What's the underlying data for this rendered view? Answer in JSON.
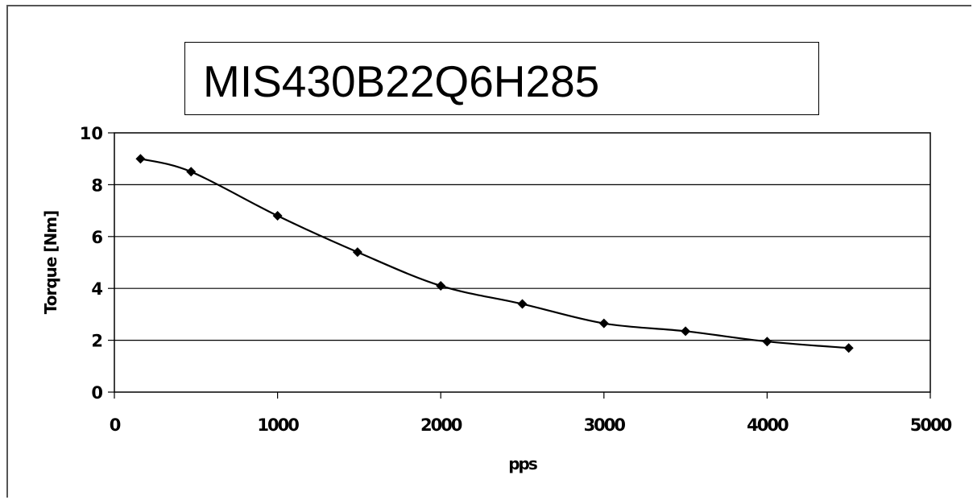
{
  "chart_data": {
    "type": "line",
    "title": "MIS430B22Q6H285",
    "xlabel": "pps",
    "ylabel": "Torque [Nm]",
    "xlim": [
      0,
      5000
    ],
    "ylim": [
      0,
      10
    ],
    "x_ticks": [
      "0",
      "1000",
      "2000",
      "3000",
      "4000",
      "5000"
    ],
    "y_ticks": [
      "0",
      "2",
      "4",
      "6",
      "8",
      "10"
    ],
    "grid": "horizontal",
    "series": [
      {
        "x": [
          160,
          470,
          1000,
          1490,
          2000,
          2500,
          3000,
          3500,
          4000,
          4500
        ],
        "y": [
          9.0,
          8.5,
          6.8,
          5.4,
          4.1,
          3.4,
          2.65,
          2.35,
          1.95,
          1.7
        ]
      }
    ],
    "colors": {
      "line": "#000000",
      "grid": "#000000",
      "frame": "#555555"
    }
  }
}
